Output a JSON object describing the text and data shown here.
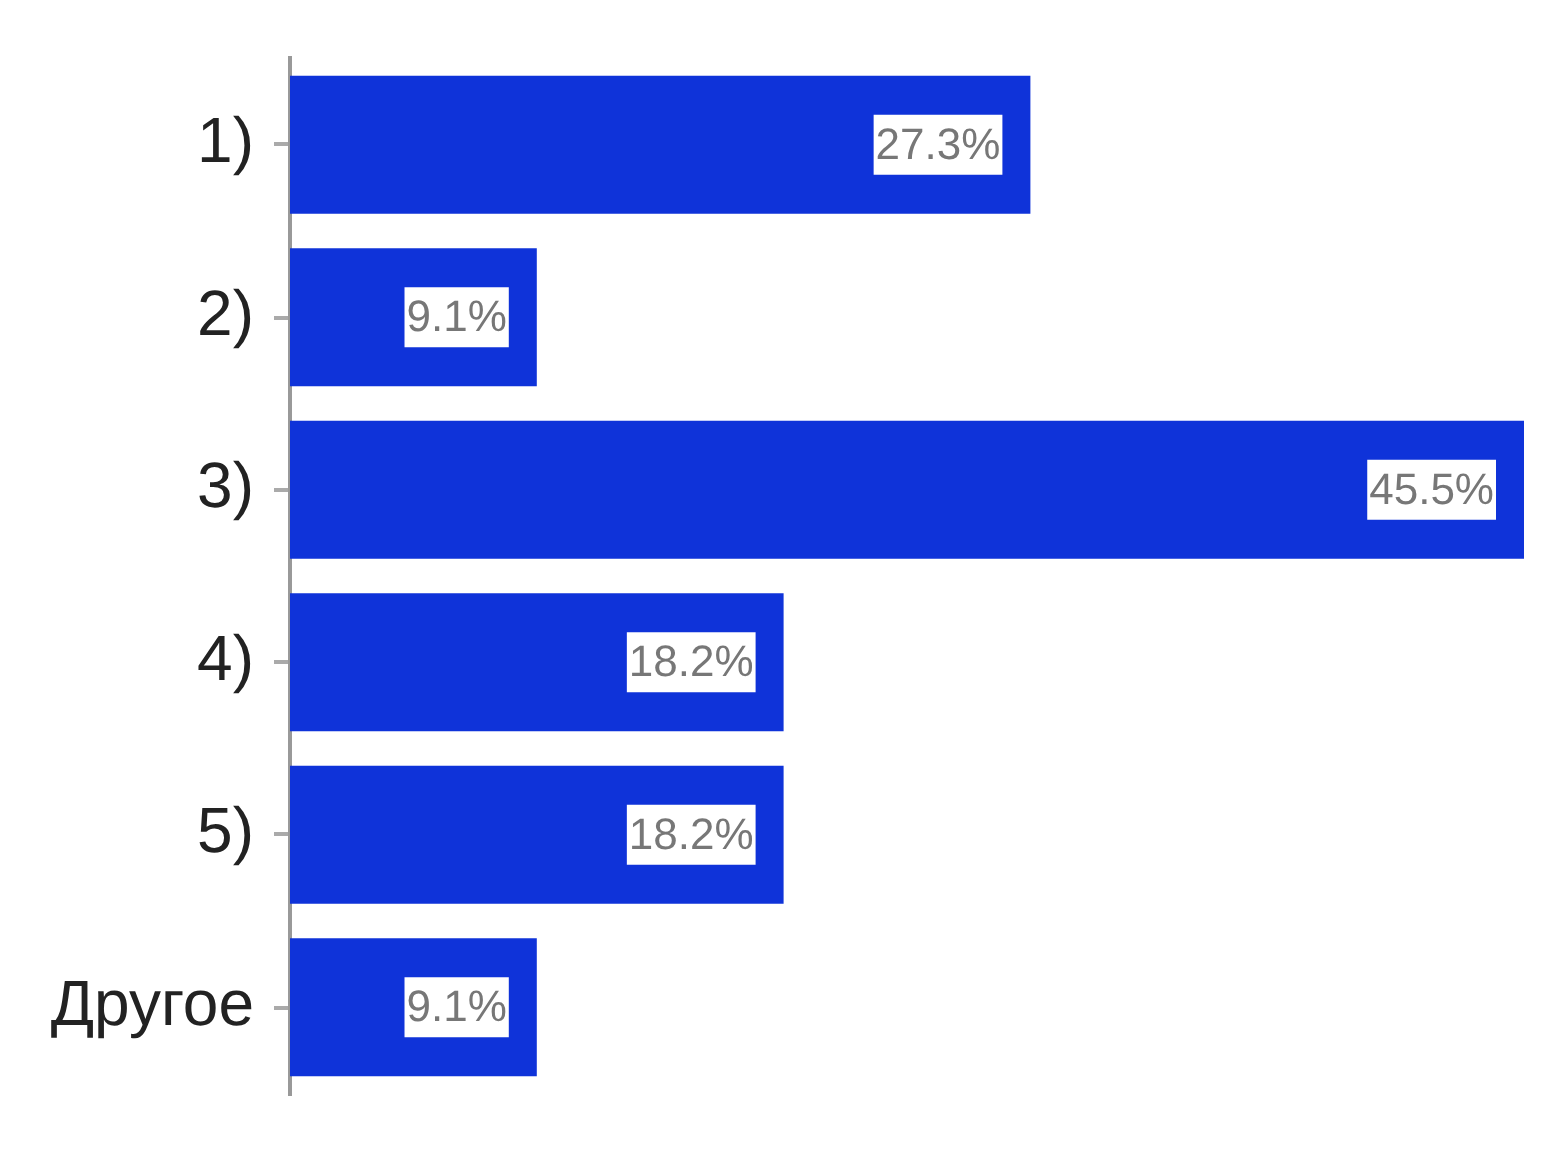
{
  "chart_data": {
    "type": "bar",
    "orientation": "horizontal",
    "categories": [
      "1)",
      "2)",
      "3)",
      "4)",
      "5)",
      "Другое"
    ],
    "values": [
      27.3,
      9.1,
      45.5,
      18.2,
      18.2,
      9.1
    ],
    "color": "#0f33d9",
    "value_labels": [
      "27.3%",
      "9.1%",
      "45.5%",
      "18.2%",
      "18.2%",
      "9.1%"
    ],
    "legend": false,
    "grid": false,
    "tick_labels": "y"
  }
}
